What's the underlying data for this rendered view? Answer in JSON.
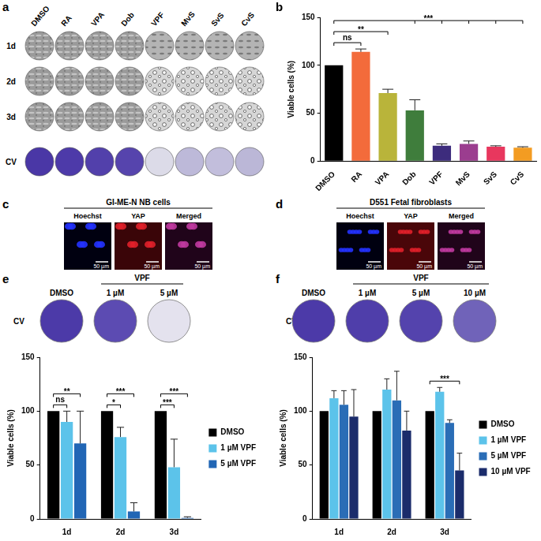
{
  "chart_data": [
    {
      "panel": "b",
      "type": "bar",
      "categories": [
        "DMSO",
        "RA",
        "VPA",
        "Dob",
        "VPF",
        "MvS",
        "SvS",
        "CvS"
      ],
      "values": [
        100,
        114,
        71,
        53,
        16,
        18,
        15,
        14
      ],
      "errors": [
        0,
        3,
        4,
        11,
        2,
        3,
        1,
        1
      ],
      "colors": [
        "#000000",
        "#f36b3b",
        "#b9b43a",
        "#3f7d3c",
        "#3d2c7d",
        "#9b3d8f",
        "#e8375e",
        "#f39c22"
      ],
      "y_label": "Viable cells (%)",
      "ylim": [
        0,
        150
      ],
      "yticks": [
        0,
        50,
        100,
        150
      ],
      "grid": false,
      "significance": [
        {
          "from": "DMSO",
          "to": [
            "RA"
          ],
          "text": "ns"
        },
        {
          "from": "DMSO",
          "to": [
            "VPA"
          ],
          "text": "**"
        },
        {
          "from": "DMSO",
          "to": [
            "Dob",
            "VPF",
            "MvS",
            "SvS",
            "CvS"
          ],
          "text": "***"
        }
      ]
    },
    {
      "type": "bar",
      "categories": [
        "1d",
        "2d",
        "3d"
      ],
      "series": [
        {
          "name": "DMSO",
          "color": "#000000",
          "values": [
            100,
            100,
            100
          ],
          "errors": [
            0,
            0,
            0
          ]
        },
        {
          "name": "1 µM VPF",
          "color": "#5cc3ea",
          "values": [
            90,
            76,
            48
          ],
          "errors": [
            10,
            9,
            26
          ]
        },
        {
          "name": "5 µM VPF",
          "color": "#2166b5",
          "values": [
            70,
            7,
            1
          ],
          "errors": [
            30,
            8,
            1
          ]
        }
      ],
      "y_label": "Viable cells (%)",
      "ylim": [
        0,
        150
      ],
      "yticks": [
        0,
        50,
        100,
        150
      ],
      "grid": false,
      "legend": "right",
      "significance": [
        {
          "category": "1d",
          "from": "DMSO",
          "to": [
            "1 µM VPF"
          ],
          "text": "ns"
        },
        {
          "category": "1d",
          "from": "DMSO",
          "to": [
            "5 µM VPF"
          ],
          "text": "**"
        },
        {
          "category": "2d",
          "from": "DMSO",
          "to": [
            "1 µM VPF"
          ],
          "text": "*"
        },
        {
          "category": "2d",
          "from": "DMSO",
          "to": [
            "5 µM VPF"
          ],
          "text": "***"
        },
        {
          "category": "3d",
          "from": "DMSO",
          "to": [
            "1 µM VPF"
          ],
          "text": "***"
        },
        {
          "category": "3d",
          "from": "DMSO",
          "to": [
            "5 µM VPF"
          ],
          "text": "***"
        }
      ]
    },
    {
      "type": "bar",
      "categories": [
        "1d",
        "2d",
        "3d"
      ],
      "series": [
        {
          "name": "DMSO",
          "color": "#000000",
          "values": [
            100,
            100,
            100
          ],
          "errors": [
            0,
            0,
            0
          ]
        },
        {
          "name": "1 µM VPF",
          "color": "#5cc3ea",
          "values": [
            112,
            120,
            118
          ],
          "errors": [
            7,
            10,
            4
          ]
        },
        {
          "name": "5 µM VPF",
          "color": "#2a6db6",
          "values": [
            106,
            110,
            89
          ],
          "errors": [
            13,
            27,
            3
          ]
        },
        {
          "name": "10 µM VPF",
          "color": "#1b2c6b",
          "values": [
            95,
            82,
            45
          ],
          "errors": [
            25,
            18,
            16
          ]
        }
      ],
      "y_label": "Viable cells (%)",
      "ylim": [
        0,
        150
      ],
      "yticks": [
        0,
        50,
        100,
        150
      ],
      "grid": false,
      "legend": "right",
      "significance": [
        {
          "category": "3d",
          "from": "DMSO",
          "to": [
            "10 µM VPF"
          ],
          "text": "***"
        }
      ]
    }
  ],
  "figure": {
    "image_grid": {
      "panel": "a",
      "columns": [
        "DMSO",
        "RA",
        "VPA",
        "Dob",
        "VPF",
        "MvS",
        "SvS",
        "CvS"
      ],
      "rows": [
        "1d",
        "2d",
        "3d",
        "CV"
      ]
    },
    "stainings": [
      {
        "panel": "c",
        "title": "GI-ME-N NB cells",
        "channels": [
          "Hoechst",
          "YAP",
          "Merged"
        ],
        "scale_bar": "50 µm"
      },
      {
        "panel": "d",
        "title": "D551 Fetal  fibroblasts",
        "channels": [
          "Hoechst",
          "YAP",
          "Merged"
        ],
        "scale_bar": "50 µm"
      }
    ],
    "wells": [
      {
        "panel": "e",
        "row": "CV",
        "wells": [
          "DMSO",
          "1 µM",
          "5 µM"
        ],
        "group": {
          "text": "VPF",
          "wells": [
            "1 µM",
            "5 µM"
          ]
        }
      },
      {
        "panel": "f",
        "row": "CV",
        "wells": [
          "DMSO",
          "1 µM",
          "5 µM",
          "10 µM"
        ],
        "group": {
          "text": "VPF",
          "wells": [
            "1 µM",
            "5 µM",
            "10 µM"
          ]
        }
      }
    ]
  }
}
